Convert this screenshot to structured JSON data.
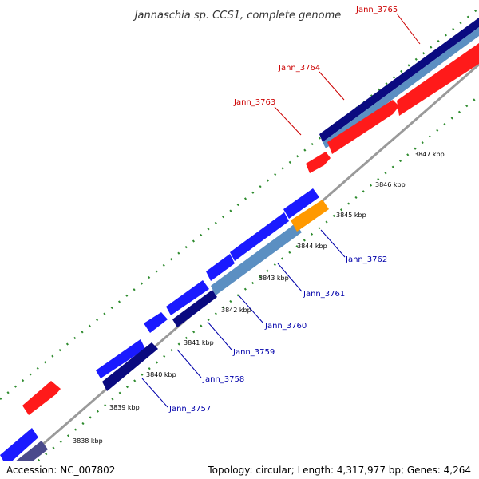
{
  "title": "Jannaschia sp. CCS1, complete genome",
  "footer": {
    "accession": "Accession: NC_007802",
    "summary": "Topology: circular; Length: 4,317,977 bp; Genes: 4,264"
  },
  "tick_labels": [
    "3838 kbp",
    "3839 kbp",
    "3840 kbp",
    "3841 kbp",
    "3842 kbp",
    "3843 kbp",
    "3844 kbp",
    "3845 kbp",
    "3846 kbp",
    "3847 kbp"
  ],
  "gene_labels": {
    "forward": [
      "Jann_3763",
      "Jann_3764",
      "Jann_3765"
    ],
    "reverse": [
      "Jann_3757",
      "Jann_3758",
      "Jann_3759",
      "Jann_3760",
      "Jann_3761",
      "Jann_3762"
    ]
  },
  "colors": {
    "backbone": "#999999",
    "ticks": "#2e8b2e",
    "forward_label": "#cc0000",
    "reverse_label": "#0000aa",
    "red_gene": "#ff1a1a",
    "blue_gene": "#1a1aff",
    "navy_gene": "#0a0a80",
    "steel_gene": "#5b8fc2",
    "orange_gene": "#ff9900",
    "slate_gene": "#4a4a8c"
  }
}
